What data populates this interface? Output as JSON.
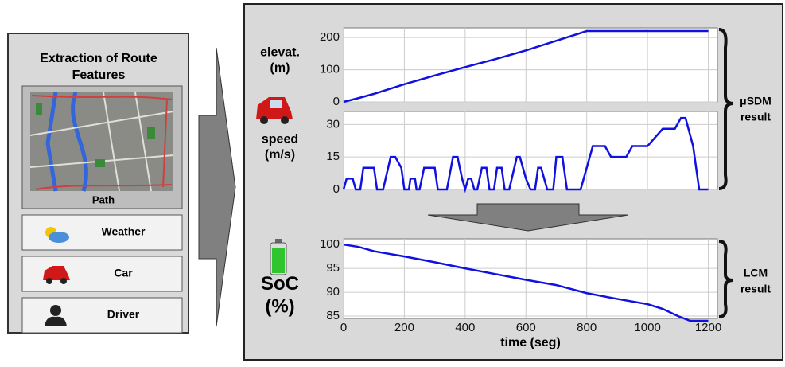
{
  "left_panel": {
    "title_lines": [
      "Extraction of Route",
      "Features"
    ],
    "path_label": "Path",
    "items": [
      "Weather",
      "Car",
      "Driver"
    ]
  },
  "right_labels": {
    "top": [
      "μSDM",
      "result"
    ],
    "bottom": [
      "LCM",
      "result"
    ]
  },
  "chart_data": [
    {
      "type": "line",
      "ylabel_lines": [
        "elevat.",
        "(m)"
      ],
      "color": "#1010e0",
      "grid": true,
      "xlim": [
        0,
        1230
      ],
      "xticks": [
        0,
        200,
        400,
        600,
        800,
        1000,
        1200
      ],
      "xtick_labels": false,
      "ylim": [
        0,
        230
      ],
      "yticks": [
        0,
        100,
        200
      ],
      "x": [
        0,
        50,
        100,
        200,
        300,
        400,
        500,
        600,
        700,
        800,
        900,
        1000,
        1100,
        1200
      ],
      "values": [
        0,
        12,
        25,
        55,
        82,
        108,
        133,
        160,
        190,
        220,
        220,
        220,
        220,
        220
      ]
    },
    {
      "type": "line",
      "ylabel_lines": [
        "speed",
        "(m/s)"
      ],
      "color": "#1010e0",
      "grid": true,
      "xlim": [
        0,
        1230
      ],
      "xticks": [
        0,
        200,
        400,
        600,
        800,
        1000,
        1200
      ],
      "xtick_labels": false,
      "ylim": [
        0,
        36
      ],
      "yticks": [
        0,
        15,
        30
      ],
      "x": [
        0,
        10,
        30,
        40,
        55,
        65,
        100,
        110,
        130,
        155,
        170,
        190,
        200,
        215,
        220,
        235,
        240,
        250,
        265,
        300,
        310,
        340,
        360,
        375,
        390,
        400,
        410,
        420,
        430,
        440,
        455,
        470,
        480,
        495,
        505,
        520,
        530,
        545,
        570,
        580,
        600,
        615,
        630,
        640,
        650,
        670,
        690,
        700,
        720,
        735,
        780,
        820,
        860,
        880,
        930,
        950,
        1000,
        1050,
        1090,
        1110,
        1125,
        1150,
        1170,
        1200
      ],
      "values": [
        0,
        5,
        5,
        0,
        0,
        10,
        10,
        0,
        0,
        15,
        15,
        10,
        0,
        0,
        5,
        5,
        0,
        0,
        10,
        10,
        0,
        0,
        15,
        15,
        5,
        0,
        5,
        5,
        0,
        0,
        10,
        10,
        0,
        0,
        10,
        10,
        0,
        0,
        15,
        15,
        5,
        0,
        0,
        10,
        10,
        0,
        0,
        15,
        15,
        0,
        0,
        20,
        20,
        15,
        15,
        20,
        20,
        28,
        28,
        33,
        33,
        20,
        0,
        0
      ]
    },
    {
      "type": "line",
      "ylabel_lines": [
        "SoC",
        "(%)"
      ],
      "xlabel": "time (seg)",
      "color": "#1010e0",
      "grid": true,
      "xlim": [
        0,
        1230
      ],
      "xticks": [
        0,
        200,
        400,
        600,
        800,
        1000,
        1200
      ],
      "xtick_labels": true,
      "ylim": [
        84.5,
        101.2
      ],
      "yticks": [
        85,
        90,
        95,
        100
      ],
      "x": [
        0,
        50,
        100,
        200,
        300,
        400,
        500,
        600,
        700,
        800,
        900,
        1000,
        1050,
        1100,
        1140,
        1170,
        1200
      ],
      "values": [
        100,
        99.5,
        98.6,
        97.5,
        96.3,
        95,
        93.8,
        92.6,
        91.5,
        89.8,
        88.6,
        87.5,
        86.5,
        85,
        84,
        84,
        84
      ]
    }
  ]
}
